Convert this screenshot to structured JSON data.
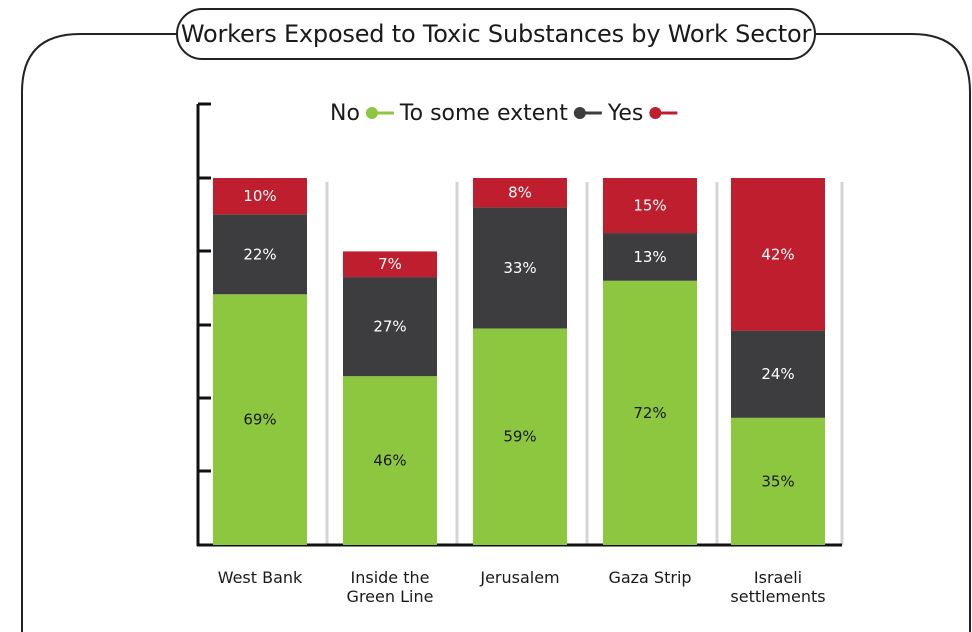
{
  "title": "Workers Exposed to Toxic Substances by Work Sector",
  "colors": {
    "no": "#8dc63f",
    "some": "#3d3d3f",
    "yes": "#be1e2d",
    "frame": "#222222",
    "gridline": "#d4d4d4"
  },
  "chart_data": {
    "type": "bar",
    "stacked": true,
    "orientation": "vertical",
    "title": "Workers Exposed to Toxic Substances by Work Sector",
    "categories": [
      "West Bank",
      "Inside the Green Line",
      "Jerusalem",
      "Gaza Strip",
      "Israeli settlements"
    ],
    "series": [
      {
        "name": "No",
        "values": [
          69,
          46,
          59,
          72,
          35
        ],
        "labels": [
          "69%",
          "46%",
          "59%",
          "72%",
          "35%"
        ],
        "color": "#8dc63f"
      },
      {
        "name": "To some extent",
        "values": [
          22,
          27,
          33,
          13,
          24
        ],
        "labels": [
          "22%",
          "27%",
          "33%",
          "13%",
          "24%"
        ],
        "color": "#3d3d3f"
      },
      {
        "name": "Yes",
        "values": [
          10,
          7,
          8,
          15,
          42
        ],
        "labels": [
          "10%",
          "7%",
          "8%",
          "15%",
          "42%"
        ],
        "color": "#be1e2d"
      }
    ],
    "ylim": [
      0,
      100
    ],
    "legend": {
      "position": "top-center",
      "items": [
        "No",
        "To some extent",
        "Yes"
      ]
    },
    "grid": false
  }
}
